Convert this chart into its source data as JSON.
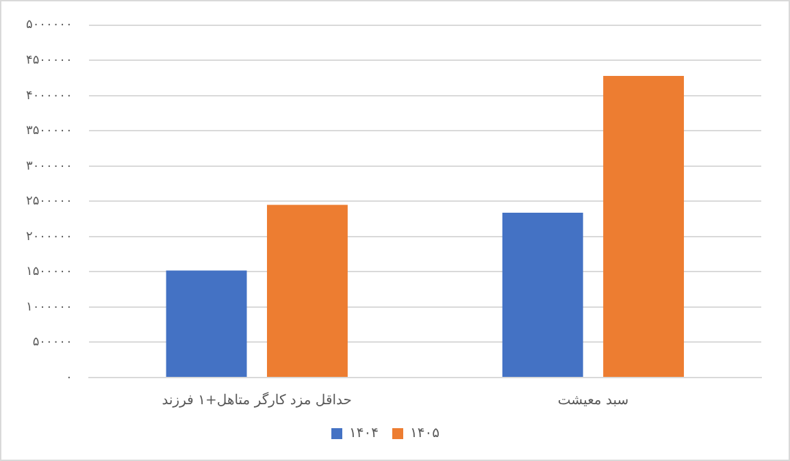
{
  "chart_data": {
    "type": "bar",
    "categories": [
      "حداقل مزد کارگر متاهل+۱ فرزند",
      "سبد معیشت"
    ],
    "series": [
      {
        "name": "۱۴۰۴",
        "color": "#4472c4",
        "values": [
          1520000,
          2340000
        ]
      },
      {
        "name": "۱۴۰۵",
        "color": "#ed7d31",
        "values": [
          2450000,
          4280000
        ]
      }
    ],
    "ylim": [
      0,
      5000000
    ],
    "yticks": [
      {
        "value": 0,
        "label": "۰"
      },
      {
        "value": 500000,
        "label": "۵۰۰۰۰۰"
      },
      {
        "value": 1000000,
        "label": "۱۰۰۰۰۰۰"
      },
      {
        "value": 1500000,
        "label": "۱۵۰۰۰۰۰"
      },
      {
        "value": 2000000,
        "label": "۲۰۰۰۰۰۰"
      },
      {
        "value": 2500000,
        "label": "۲۵۰۰۰۰۰"
      },
      {
        "value": 3000000,
        "label": "۳۰۰۰۰۰۰"
      },
      {
        "value": 3500000,
        "label": "۳۵۰۰۰۰۰"
      },
      {
        "value": 4000000,
        "label": "۴۰۰۰۰۰۰"
      },
      {
        "value": 4500000,
        "label": "۴۵۰۰۰۰۰"
      },
      {
        "value": 5000000,
        "label": "۵۰۰۰۰۰۰"
      }
    ],
    "grid": "y",
    "legend": "bottom"
  }
}
